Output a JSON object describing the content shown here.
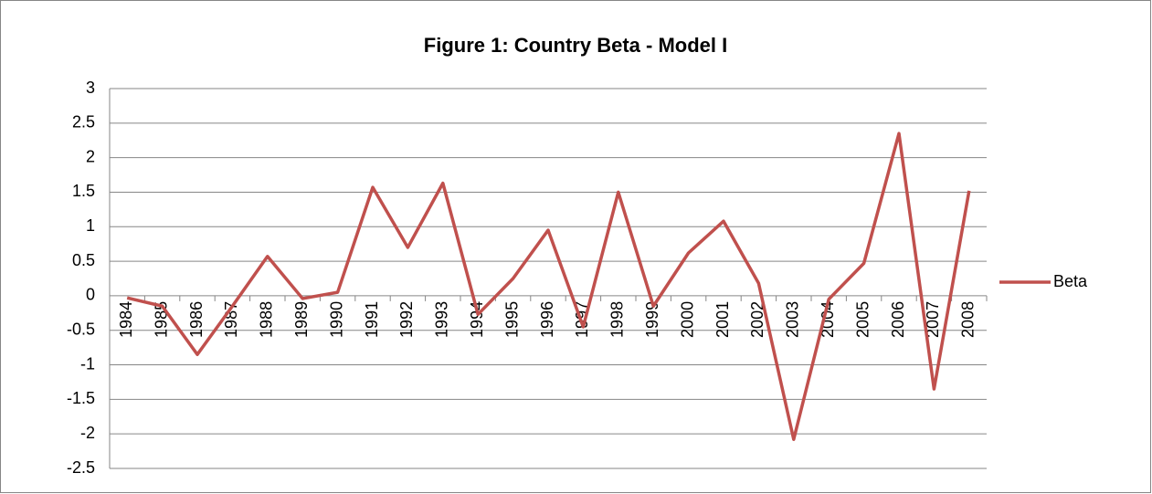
{
  "chart_data": {
    "type": "line",
    "title": "Figure 1: Country Beta - Model I",
    "categories": [
      "1984",
      "1985",
      "1986",
      "1987",
      "1988",
      "1989",
      "1990",
      "1991",
      "1992",
      "1993",
      "1994",
      "1995",
      "1996",
      "1997",
      "1998",
      "1999",
      "2000",
      "2001",
      "2002",
      "2003",
      "2004",
      "2005",
      "2006",
      "2007",
      "2008"
    ],
    "series": [
      {
        "name": "Beta",
        "color": "#c0504d",
        "values": [
          -0.03,
          -0.15,
          -0.85,
          -0.15,
          0.57,
          -0.04,
          0.05,
          1.57,
          0.7,
          1.63,
          -0.27,
          0.25,
          0.95,
          -0.45,
          1.5,
          -0.15,
          0.62,
          1.08,
          0.18,
          -2.08,
          -0.05,
          0.47,
          2.35,
          -1.35,
          1.52
        ]
      }
    ],
    "ylim": [
      -2.5,
      3
    ],
    "yticks": [
      -2.5,
      -2,
      -1.5,
      -1,
      -0.5,
      0,
      0.5,
      1,
      1.5,
      2,
      2.5,
      3
    ],
    "grid": true,
    "legend": "right"
  }
}
